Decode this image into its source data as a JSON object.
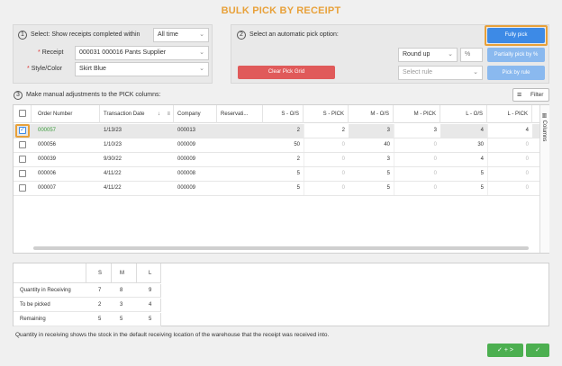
{
  "page_title": "BULK PICK BY RECEIPT",
  "step1": {
    "number": "1",
    "label": "Select:  Show receipts completed within",
    "period_value": "All time",
    "receipt_label": "Receipt",
    "receipt_value": "000031 000016 Pants Supplier",
    "style_label": "Style/Color",
    "style_value": "Skirt Blue",
    "required_mark": "*"
  },
  "step2": {
    "number": "2",
    "label": "Select an automatic pick option:",
    "fully_pick": "Fully pick",
    "round_value": "Round up",
    "percent_symbol": "%",
    "partial_pick": "Partially pick by %",
    "rule_placeholder": "Select rule",
    "pick_by_rule": "Pick by rule",
    "clear_grid": "Clear Pick Grid"
  },
  "step3": {
    "number": "3",
    "label": "Make manual adjustments to the PICK columns:",
    "filter": "Filter",
    "columns_tab": "Columns"
  },
  "grid": {
    "headers": [
      "Order Number",
      "Transaction Date",
      "Company",
      "Reservati...",
      "S - O/S",
      "S - PICK",
      "M - O/S",
      "M - PICK",
      "L - O/S",
      "L - PICK"
    ],
    "rows": [
      {
        "order": "000057",
        "date": "1/13/23",
        "company": "000013",
        "res": "",
        "s_os": "2",
        "s_pick": "2",
        "m_os": "3",
        "m_pick": "3",
        "l_os": "4",
        "l_pick": "4",
        "checked": true
      },
      {
        "order": "000056",
        "date": "1/10/23",
        "company": "000009",
        "res": "",
        "s_os": "50",
        "s_pick": "0",
        "m_os": "40",
        "m_pick": "0",
        "l_os": "30",
        "l_pick": "0",
        "checked": false
      },
      {
        "order": "000039",
        "date": "9/30/22",
        "company": "000009",
        "res": "",
        "s_os": "2",
        "s_pick": "0",
        "m_os": "3",
        "m_pick": "0",
        "l_os": "4",
        "l_pick": "0",
        "checked": false
      },
      {
        "order": "000006",
        "date": "4/11/22",
        "company": "000008",
        "res": "",
        "s_os": "5",
        "s_pick": "0",
        "m_os": "5",
        "m_pick": "0",
        "l_os": "5",
        "l_pick": "0",
        "checked": false
      },
      {
        "order": "000007",
        "date": "4/11/22",
        "company": "000009",
        "res": "",
        "s_os": "5",
        "s_pick": "0",
        "m_os": "5",
        "m_pick": "0",
        "l_os": "5",
        "l_pick": "0",
        "checked": false
      }
    ]
  },
  "summary": {
    "sizes": [
      "S",
      "M",
      "L"
    ],
    "rows": [
      {
        "label": "Quantity in Receiving",
        "values": [
          "7",
          "8",
          "9"
        ]
      },
      {
        "label": "To be picked",
        "values": [
          "2",
          "3",
          "4"
        ]
      },
      {
        "label": "Remaining",
        "values": [
          "5",
          "5",
          "5"
        ]
      }
    ]
  },
  "footnote": "Quantity in receiving shows the stock in the default receiving location of the warehouse that the receipt was received into.",
  "footer": {
    "save_next": "✓ + >",
    "save": "✓"
  },
  "colors": {
    "accent_orange": "#e8a13a",
    "primary_blue": "#3d8ae6",
    "confirm_green": "#4caf50",
    "danger_red": "#e05a5a"
  }
}
